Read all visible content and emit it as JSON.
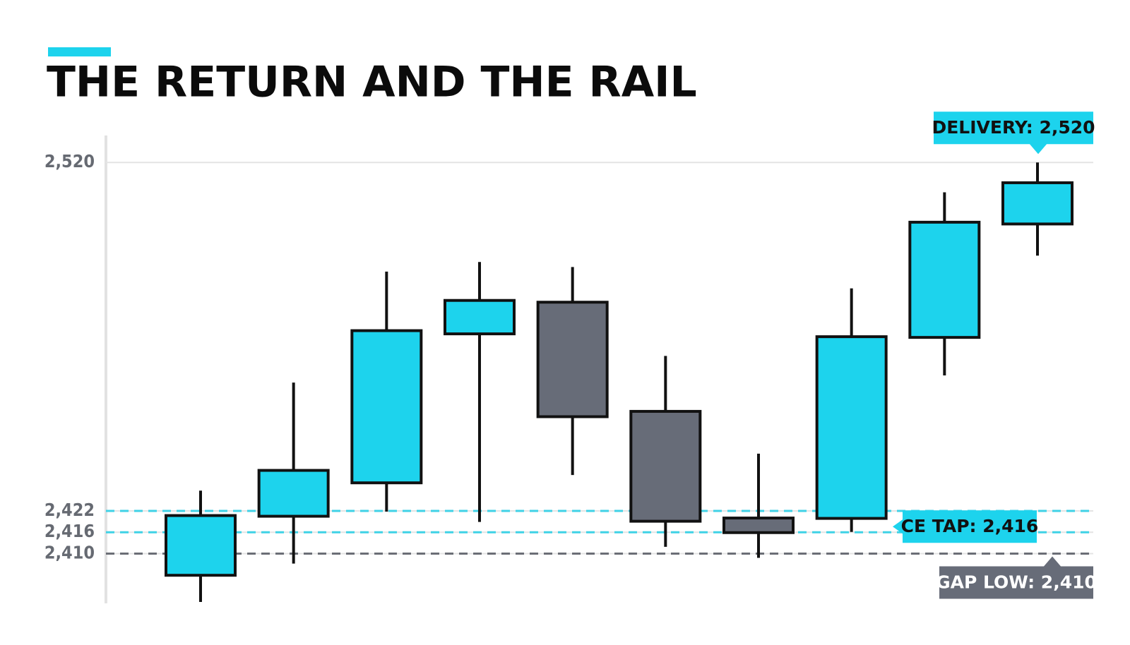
{
  "chart_data": {
    "type": "candlestick",
    "title": "THE RETURN AND THE RAIL",
    "series": [
      {
        "open": [
          2403.9,
          2420.5,
          2429.9,
          2471.8,
          2480.7,
          2450.0,
          2420.0,
          2419.9,
          2470.8,
          2502.7
        ],
        "high": [
          2427.7,
          2458.1,
          2489.3,
          2492.0,
          2490.6,
          2465.6,
          2438.1,
          2484.6,
          2511.6,
          2520
        ],
        "low": [
          2396.4,
          2407.2,
          2421.8,
          2418.9,
          2432.1,
          2411.9,
          2408.8,
          2416.1,
          2460.1,
          2493.8
        ],
        "close": [
          2420.7,
          2433.4,
          2472.7,
          2481.2,
          2448.5,
          2419.1,
          2415.9,
          2471.0,
          2503.2,
          2514.3
        ]
      }
    ],
    "up_color": "#1dd3ed",
    "down_color": "#676c78",
    "ylim": [
      2396,
      2526
    ],
    "yticks": [
      {
        "value": 2410,
        "label": "2,410"
      },
      {
        "value": 2416,
        "label": "2,416"
      },
      {
        "value": 2422,
        "label": "2,422"
      },
      {
        "value": 2520,
        "label": "2,520"
      }
    ],
    "grid": true,
    "reference_lines": [
      {
        "value": 2422,
        "color": "#3fd2e6"
      },
      {
        "value": 2416,
        "color": "#3fd2e6"
      },
      {
        "value": 2410,
        "color": "#6b6e76"
      }
    ],
    "annotations": [
      {
        "text": "DELIVERY: 2,520",
        "value": 2520,
        "color": "#1dd3ed",
        "text_color": "#111111"
      },
      {
        "text": "CE TAP: 2,416",
        "value": 2416,
        "color": "#1dd3ed",
        "text_color": "#111111"
      },
      {
        "text": "GAP LOW: 2,410",
        "value": 2410,
        "color": "#676c78",
        "text_color": "#ffffff"
      }
    ]
  }
}
